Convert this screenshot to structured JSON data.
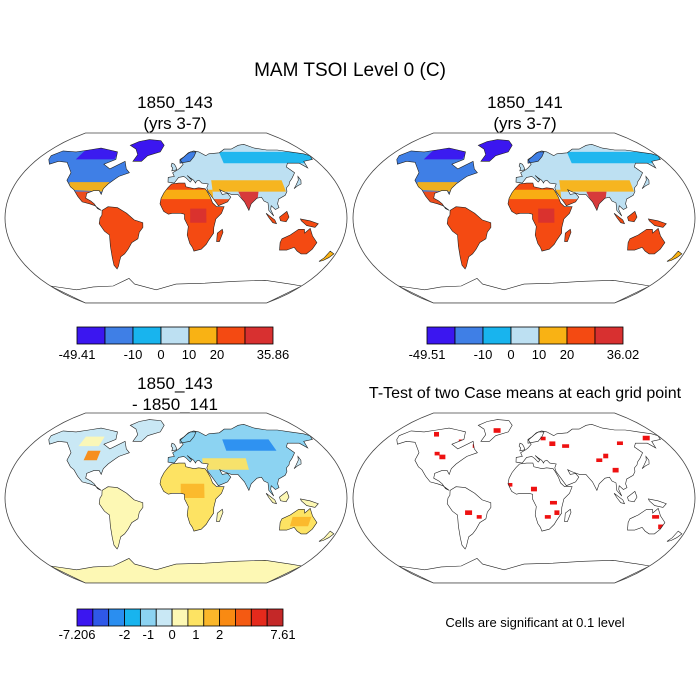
{
  "page": {
    "title": "MAM TSOI Level 0 (C)",
    "note": "Cells are significant at 0.1 level"
  },
  "panels": [
    {
      "id": "p1",
      "title_line1": "1850_143",
      "title_line2": "(yrs 3-7)",
      "kind": "absolute"
    },
    {
      "id": "p2",
      "title_line1": "1850_141",
      "title_line2": "(yrs 3-7)",
      "kind": "absolute"
    },
    {
      "id": "p3",
      "title_line1": "1850_143",
      "title_line2": "- 1850_141",
      "kind": "difference"
    },
    {
      "id": "p4",
      "title_line1": "T-Test of two Case means at each grid point",
      "title_line2": "",
      "kind": "ttest"
    }
  ],
  "colorbars": {
    "cb1": {
      "colors": [
        "#3b16f0",
        "#3f7fe6",
        "#18b4ee",
        "#bde0f2",
        "#f9b214",
        "#f44a12",
        "#d83030"
      ],
      "labels": [
        {
          "text": "-49.41",
          "at": 0
        },
        {
          "text": "-10",
          "at": 2
        },
        {
          "text": "0",
          "at": 3
        },
        {
          "text": "10",
          "at": 4
        },
        {
          "text": "20",
          "at": 5
        },
        {
          "text": "35.86",
          "at": 7
        }
      ]
    },
    "cb2": {
      "colors": [
        "#3b16f0",
        "#3f7fe6",
        "#18b4ee",
        "#bde0f2",
        "#f9b214",
        "#f44a12",
        "#d83030"
      ],
      "labels": [
        {
          "text": "-49.51",
          "at": 0
        },
        {
          "text": "-10",
          "at": 2
        },
        {
          "text": "0",
          "at": 3
        },
        {
          "text": "10",
          "at": 4
        },
        {
          "text": "20",
          "at": 5
        },
        {
          "text": "36.02",
          "at": 7
        }
      ]
    },
    "cb3": {
      "colors": [
        "#3b16f0",
        "#2f58e8",
        "#2a8ef0",
        "#18b4ee",
        "#8cd3f2",
        "#c9e8f5",
        "#fdf8b4",
        "#fde363",
        "#fbb72a",
        "#f98a12",
        "#f45a12",
        "#e52a1c",
        "#c42828"
      ],
      "labels": [
        {
          "text": "-7.206",
          "at": 0
        },
        {
          "text": "-2",
          "at": 3
        },
        {
          "text": "-1",
          "at": 4.5
        },
        {
          "text": "0",
          "at": 6
        },
        {
          "text": "1",
          "at": 7.5
        },
        {
          "text": "2",
          "at": 9
        },
        {
          "text": "7.61",
          "at": 13
        }
      ]
    }
  },
  "significance_color": "#ee1111"
}
